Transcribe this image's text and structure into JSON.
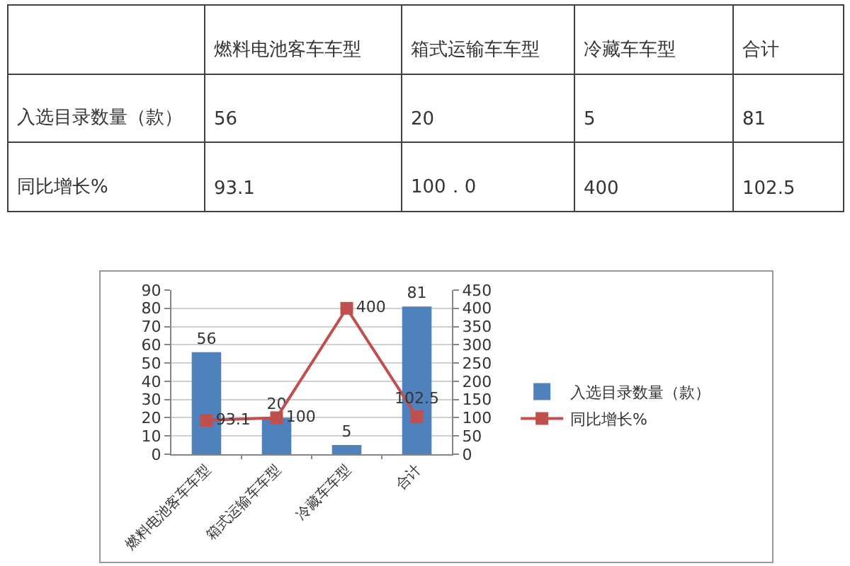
{
  "chart_data": [
    {
      "type": "other",
      "categories": [
        "燃料电池客车车型",
        "箱式运输车车型",
        "冷藏车车型",
        "合计"
      ],
      "data_labels": true,
      "series": [
        {
          "name": "入选目录数量（款）",
          "values": [
            56,
            20,
            5,
            81
          ]
        },
        {
          "name": "同比增长%",
          "values": [
            93.1,
            100,
            400,
            102.5
          ],
          "value_labels": [
            "93.1",
            "100．0",
            "400",
            "102.5"
          ]
        }
      ]
    },
    {
      "type": "bar",
      "categories": [
        "燃料电池客车车型",
        "箱式运输车车型",
        "冷藏车车型",
        "合计"
      ],
      "series": [
        {
          "name": "入选目录数量（款）",
          "color": "#4f81bd",
          "values": [
            56,
            20,
            5,
            81
          ]
        },
        {
          "name": "同比增长%",
          "type": "line",
          "axis": "y2",
          "marker": "square",
          "color": "#c0504d",
          "values": [
            93.1,
            100,
            400,
            102.5
          ]
        }
      ],
      "ylim": [
        0,
        90
      ],
      "yticks": [
        0,
        10,
        20,
        30,
        40,
        50,
        60,
        70,
        80,
        90
      ],
      "y2lim": [
        0,
        450
      ],
      "y2ticks": [
        0,
        50,
        100,
        150,
        200,
        250,
        300,
        350,
        400,
        450
      ],
      "grid": "y",
      "legend": "right",
      "data_labels": true
    }
  ]
}
